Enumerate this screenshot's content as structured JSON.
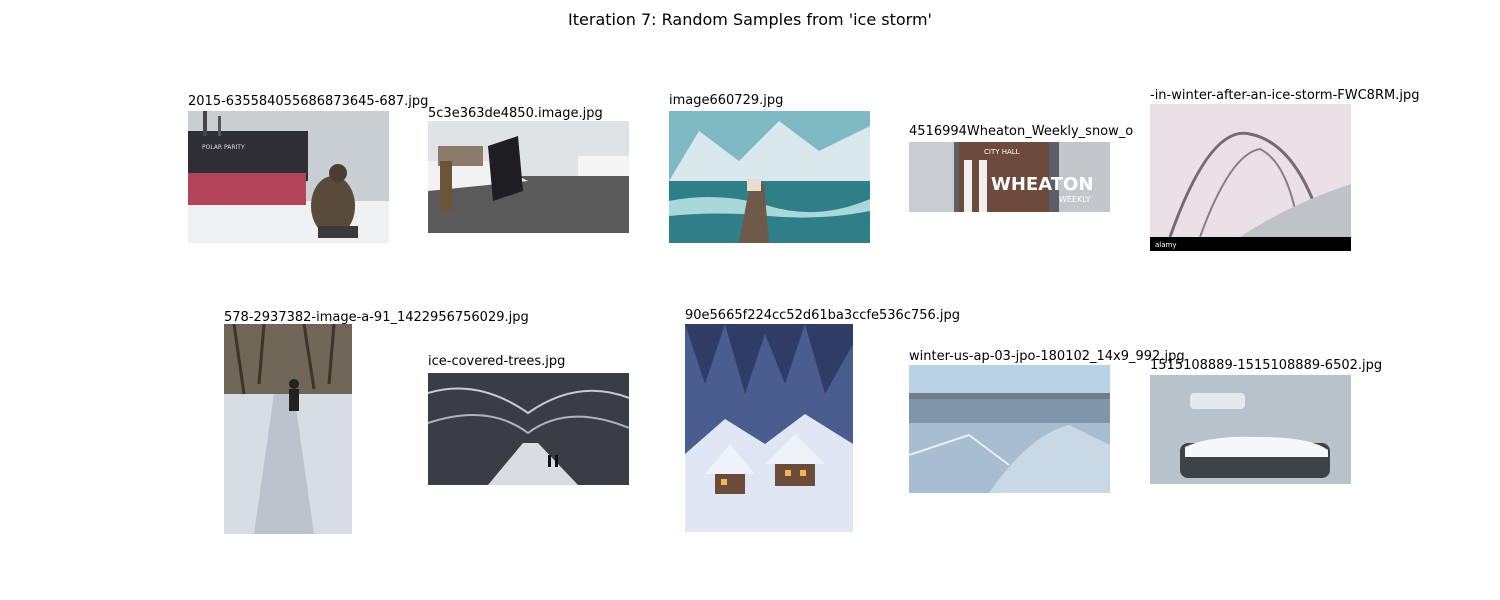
{
  "page": {
    "title": "Iteration 7: Random Samples from 'ice storm'"
  },
  "samples": [
    {
      "caption": "2015-635584055686873645-687.jpg"
    },
    {
      "caption": "5c3e363de4850.image.jpg"
    },
    {
      "caption": "image660729.jpg"
    },
    {
      "caption": "4516994Wheaton_Weekly_snow_o"
    },
    {
      "caption": "-in-winter-after-an-ice-storm-FWC8RM.jpg"
    },
    {
      "caption": "578-2937382-image-a-91_1422956756029.jpg"
    },
    {
      "caption": "ice-covered-trees.jpg"
    },
    {
      "caption": "90e5665f224cc52d61ba3ccfe536c756.jpg"
    },
    {
      "caption": "winter-us-ap-03-jpo-180102_14x9_992.jpg"
    },
    {
      "caption": "1515108889-1515108889-6502.jpg"
    }
  ],
  "photo_text": {
    "ship_name": "POLAR PARITY",
    "city_hall": "CITY HALL",
    "wheaton": "WHEATON",
    "weekly": "WEEKLY",
    "watermark": "alamy"
  }
}
